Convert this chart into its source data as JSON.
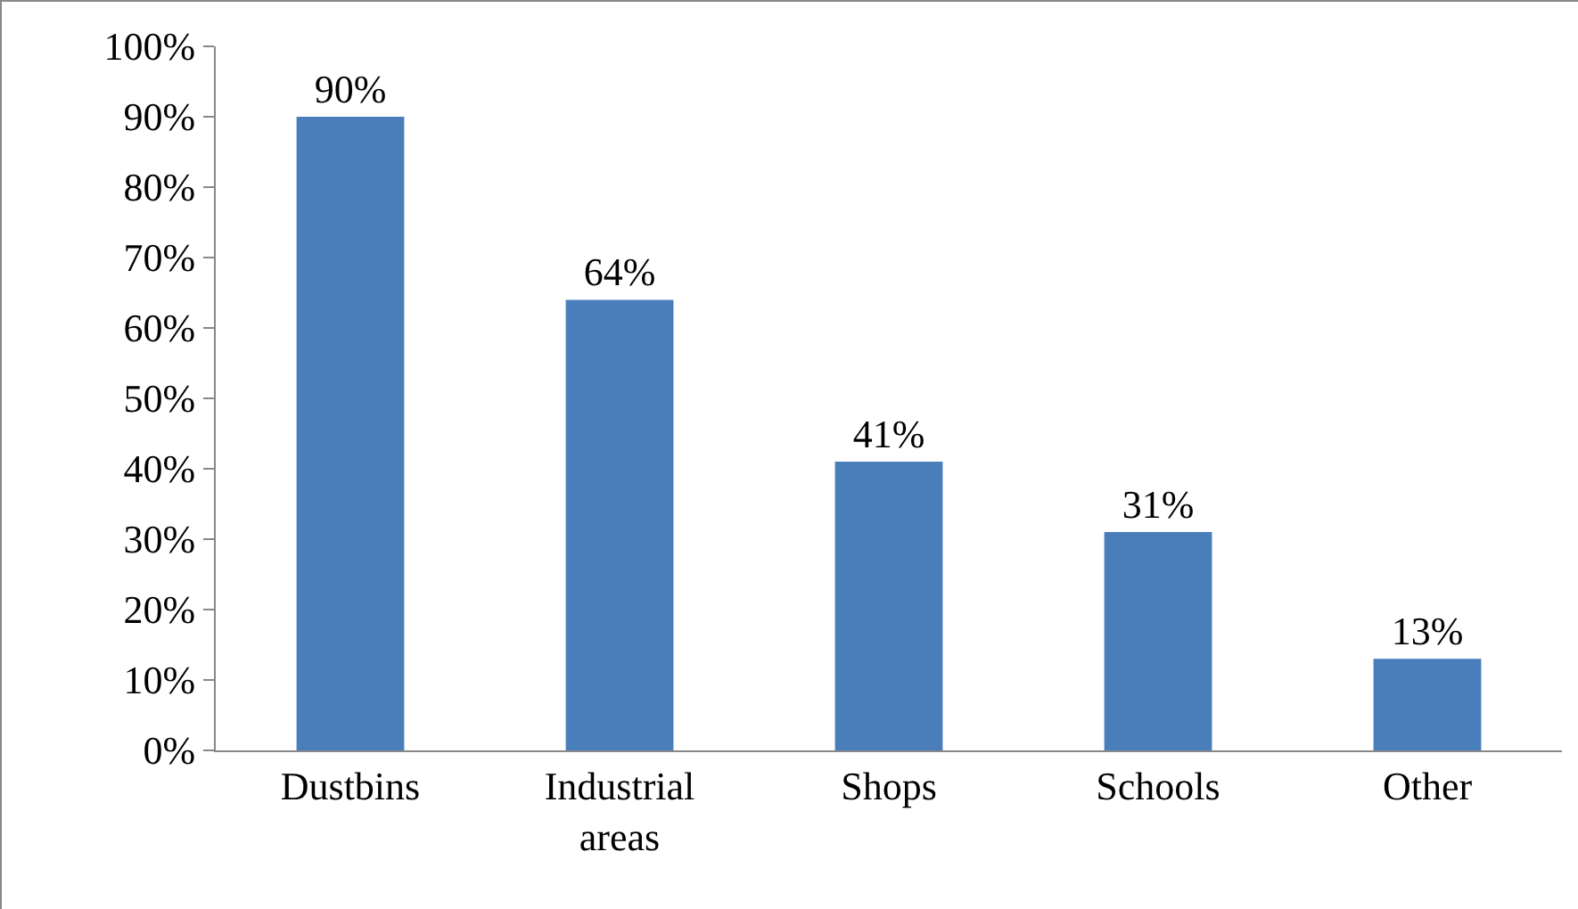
{
  "chart_data": {
    "type": "bar",
    "categories": [
      "Dustbins",
      "Industrial areas",
      "Shops",
      "Schools",
      "Other"
    ],
    "values": [
      90,
      64,
      41,
      31,
      13
    ],
    "value_labels": [
      "90%",
      "64%",
      "41%",
      "31%",
      "13%"
    ],
    "color": "#4a7ebb",
    "ylim": [
      0,
      100
    ],
    "yticks": [
      {
        "value": 0,
        "label": "0%"
      },
      {
        "value": 10,
        "label": "10%"
      },
      {
        "value": 20,
        "label": "20%"
      },
      {
        "value": 30,
        "label": "30%"
      },
      {
        "value": 40,
        "label": "40%"
      },
      {
        "value": 50,
        "label": "50%"
      },
      {
        "value": 60,
        "label": "60%"
      },
      {
        "value": 70,
        "label": "70%"
      },
      {
        "value": 80,
        "label": "80%"
      },
      {
        "value": 90,
        "label": "90%"
      },
      {
        "value": 100,
        "label": "100%"
      }
    ],
    "grid": false,
    "legend": false
  }
}
